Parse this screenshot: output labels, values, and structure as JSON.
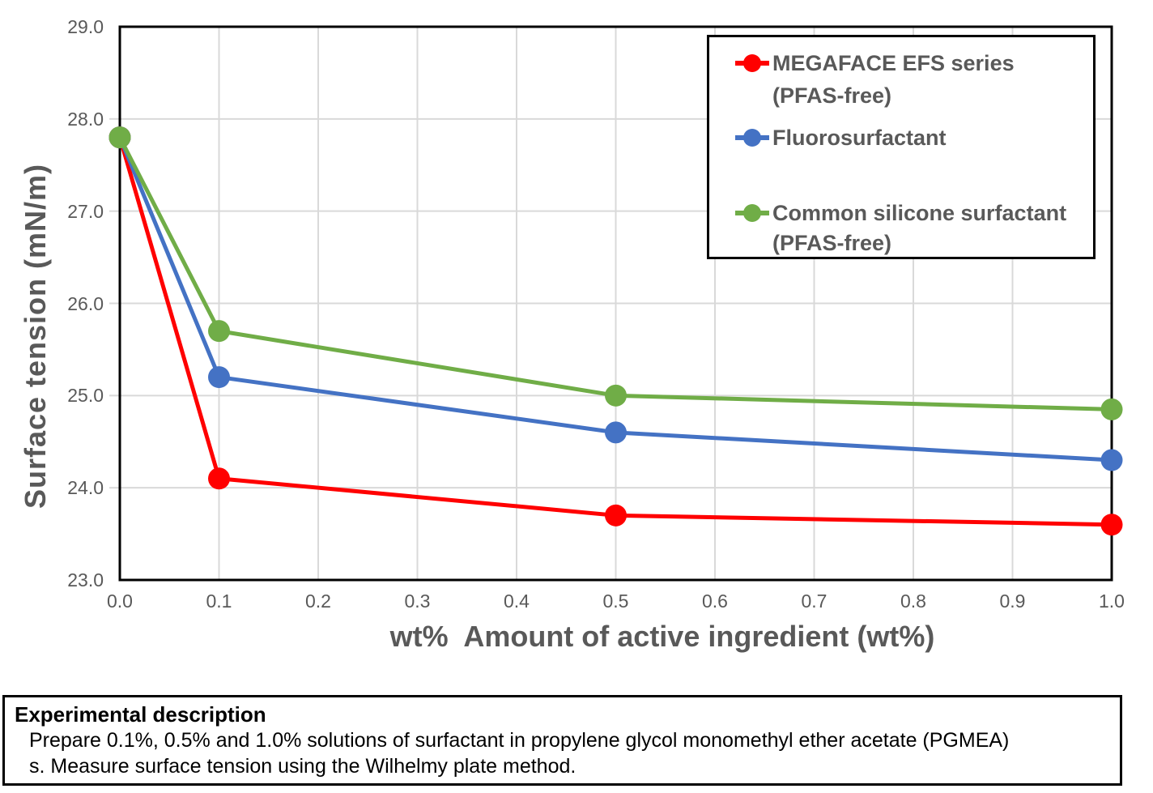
{
  "chart_data": {
    "type": "line",
    "title": "",
    "xlabel": "wt%  Amount of active ingredient (wt%)",
    "ylabel": "Surface tension (mN/m)",
    "xlim": [
      0.0,
      1.0
    ],
    "ylim": [
      23.0,
      29.0
    ],
    "grid": true,
    "gridline_color": "#d9d9d9",
    "legend_position": "top-right",
    "x_tick_labels": [
      "0.0",
      "0.1",
      "0.2",
      "0.3",
      "0.4",
      "0.5",
      "0.6",
      "0.7",
      "0.8",
      "0.9",
      "1.0"
    ],
    "y_tick_labels": [
      "23.0",
      "24.0",
      "25.0",
      "26.0",
      "27.0",
      "28.0",
      "29.0"
    ],
    "x": [
      0.0,
      0.1,
      0.5,
      1.0
    ],
    "series": [
      {
        "name": "MEGAFACE EFS series (PFAS-free)",
        "legend_lines": [
          "MEGAFACE EFS series",
          "(PFAS-free)"
        ],
        "color": "#ff0000",
        "values": [
          27.8,
          24.1,
          23.7,
          23.6
        ]
      },
      {
        "name": "Fluorosurfactant",
        "legend_lines": [
          "Fluorosurfactant"
        ],
        "color": "#4472c4",
        "values": [
          27.8,
          25.2,
          24.6,
          24.3
        ]
      },
      {
        "name": "Common silicone surfactant (PFAS-free)",
        "legend_lines": [
          "Common silicone surfactant",
          "(PFAS-free)"
        ],
        "color": "#70ad47",
        "values": [
          27.8,
          25.7,
          25.0,
          24.85
        ]
      }
    ]
  },
  "description": {
    "title": "Experimental description",
    "lines": [
      "Prepare 0.1%, 0.5% and 1.0% solutions of surfactant in propylene glycol monomethyl ether acetate (PGMEA)",
      "s. Measure surface tension using the Wilhelmy plate method."
    ]
  }
}
